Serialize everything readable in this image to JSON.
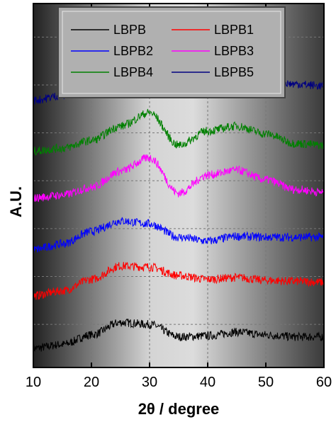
{
  "chart_data": {
    "type": "line",
    "xlabel": "2θ / degree",
    "ylabel": "A.U.",
    "xlim": [
      10,
      60
    ],
    "x_ticks": [
      10,
      20,
      30,
      40,
      50,
      60
    ],
    "grid": true,
    "legend": "top",
    "series": [
      {
        "name": "LBPB",
        "color": "#000000",
        "x": [
          10,
          15,
          20,
          25,
          30,
          35,
          40,
          45,
          50,
          55,
          60
        ],
        "y": [
          0.0,
          0.04,
          0.14,
          0.27,
          0.25,
          0.12,
          0.13,
          0.17,
          0.14,
          0.12,
          0.12
        ]
      },
      {
        "name": "LBPB1",
        "color": "#ff0000",
        "x": [
          10,
          15,
          20,
          25,
          30,
          35,
          40,
          45,
          50,
          55,
          60
        ],
        "y": [
          0.55,
          0.6,
          0.72,
          0.86,
          0.85,
          0.76,
          0.72,
          0.74,
          0.71,
          0.7,
          0.69
        ]
      },
      {
        "name": "LBPB2",
        "color": "#0000ff",
        "x": [
          10,
          15,
          20,
          25,
          30,
          35,
          40,
          45,
          50,
          55,
          60
        ],
        "y": [
          1.03,
          1.09,
          1.22,
          1.33,
          1.3,
          1.16,
          1.12,
          1.17,
          1.16,
          1.16,
          1.16
        ]
      },
      {
        "name": "LBPB3",
        "color": "#ff00ff",
        "x": [
          10,
          15,
          20,
          25,
          30,
          35,
          40,
          45,
          50,
          55,
          60
        ],
        "y": [
          1.57,
          1.6,
          1.68,
          1.85,
          1.99,
          1.62,
          1.81,
          1.86,
          1.76,
          1.66,
          1.63
        ]
      },
      {
        "name": "LBPB4",
        "color": "#008000",
        "x": [
          10,
          15,
          20,
          25,
          30,
          35,
          40,
          45,
          50,
          55,
          60
        ],
        "y": [
          2.06,
          2.09,
          2.17,
          2.32,
          2.46,
          2.12,
          2.27,
          2.32,
          2.24,
          2.14,
          2.12
        ]
      },
      {
        "name": "LBPB5",
        "color": "#000080",
        "x": [
          10,
          15,
          20,
          25,
          30,
          35,
          40,
          45,
          50,
          55,
          60
        ],
        "y": [
          2.59,
          2.64,
          2.76,
          2.89,
          2.98,
          2.8,
          2.84,
          2.86,
          2.8,
          2.76,
          2.74
        ]
      }
    ]
  }
}
